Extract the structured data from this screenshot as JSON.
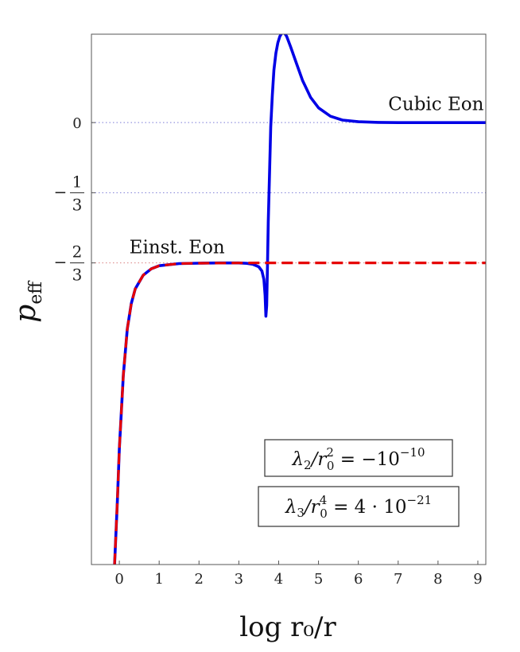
{
  "chart_data": {
    "type": "line",
    "xlabel": "log r₀/r",
    "ylabel": "p",
    "ylabel_sub": "eff",
    "xlim": [
      -0.7,
      9.2
    ],
    "ylim": [
      -2.1,
      0.42
    ],
    "x_ticks": [
      {
        "value": 0,
        "label": "0"
      },
      {
        "value": 1,
        "label": "1"
      },
      {
        "value": 2,
        "label": "2"
      },
      {
        "value": 3,
        "label": "3"
      },
      {
        "value": 4,
        "label": "4"
      },
      {
        "value": 5,
        "label": "5"
      },
      {
        "value": 6,
        "label": "6"
      },
      {
        "value": 7,
        "label": "7"
      },
      {
        "value": 8,
        "label": "8"
      },
      {
        "value": 9,
        "label": "9"
      }
    ],
    "y_ticks": [
      {
        "value": 0,
        "label": "0",
        "fraction": false
      },
      {
        "value": -0.3333,
        "sign": "−",
        "num": "1",
        "den": "3",
        "fraction": true
      },
      {
        "value": -0.6667,
        "sign": "−",
        "num": "2",
        "den": "3",
        "fraction": true
      }
    ],
    "reference_lines": [
      {
        "y": 0,
        "color": "#7b7bd6",
        "style": "dotted"
      },
      {
        "y": -0.3333,
        "color": "#7b7bd6",
        "style": "dotted"
      },
      {
        "y": -0.6667,
        "color": "#d98080",
        "style": "dotted"
      }
    ],
    "series": [
      {
        "color": "#0000e6",
        "style": "solid",
        "x": [
          -0.12,
          -0.05,
          0.0,
          0.1,
          0.2,
          0.3,
          0.4,
          0.6,
          0.8,
          1.0,
          1.5,
          2.0,
          2.5,
          3.0,
          3.2,
          3.35,
          3.5,
          3.58,
          3.63,
          3.66,
          3.68,
          3.7,
          3.72,
          3.74,
          3.77,
          3.8,
          3.84,
          3.88,
          3.93,
          3.98,
          4.03,
          4.08,
          4.13,
          4.2,
          4.3,
          4.45,
          4.6,
          4.8,
          5.0,
          5.3,
          5.6,
          6.0,
          6.5,
          7.0,
          8.0,
          9.2
        ],
        "y": [
          -2.1,
          -1.8,
          -1.55,
          -1.2,
          -0.98,
          -0.86,
          -0.79,
          -0.725,
          -0.695,
          -0.68,
          -0.67,
          -0.668,
          -0.667,
          -0.667,
          -0.669,
          -0.673,
          -0.685,
          -0.705,
          -0.745,
          -0.82,
          -0.92,
          -0.87,
          -0.68,
          -0.47,
          -0.24,
          -0.02,
          0.13,
          0.25,
          0.33,
          0.38,
          0.41,
          0.425,
          0.43,
          0.41,
          0.36,
          0.28,
          0.2,
          0.12,
          0.07,
          0.03,
          0.012,
          0.004,
          0.001,
          0.0,
          0.0,
          0.0
        ]
      },
      {
        "color": "#e60000",
        "style": "dashed",
        "x": [
          -0.12,
          -0.05,
          0.0,
          0.1,
          0.2,
          0.3,
          0.4,
          0.6,
          0.8,
          1.0,
          1.5,
          2.0,
          3.0,
          4.0,
          5.0,
          6.0,
          7.0,
          8.0,
          9.2
        ],
        "y": [
          -2.1,
          -1.8,
          -1.55,
          -1.2,
          -0.98,
          -0.86,
          -0.79,
          -0.725,
          -0.695,
          -0.68,
          -0.67,
          -0.668,
          -0.667,
          -0.6667,
          -0.6667,
          -0.6667,
          -0.6667,
          -0.6667,
          -0.6667
        ]
      }
    ],
    "annotations": [
      {
        "text": "Cubic Eon",
        "x": 7.95,
        "y": 0.06
      },
      {
        "text": "Einst. Eon",
        "x": 1.45,
        "y": -0.62
      }
    ],
    "boxes": [
      {
        "lhs": "λ",
        "lhs_sub": "2",
        "mid": "/r",
        "mid_sup": "2",
        "mid_sub": "0",
        "rhs": " = −10",
        "rhs_sup": "−10"
      },
      {
        "lhs": "λ",
        "lhs_sub": "3",
        "mid": "/r",
        "mid_sup": "4",
        "mid_sub": "0",
        "rhs": " = 4 · 10",
        "rhs_sup": "−21"
      }
    ]
  }
}
